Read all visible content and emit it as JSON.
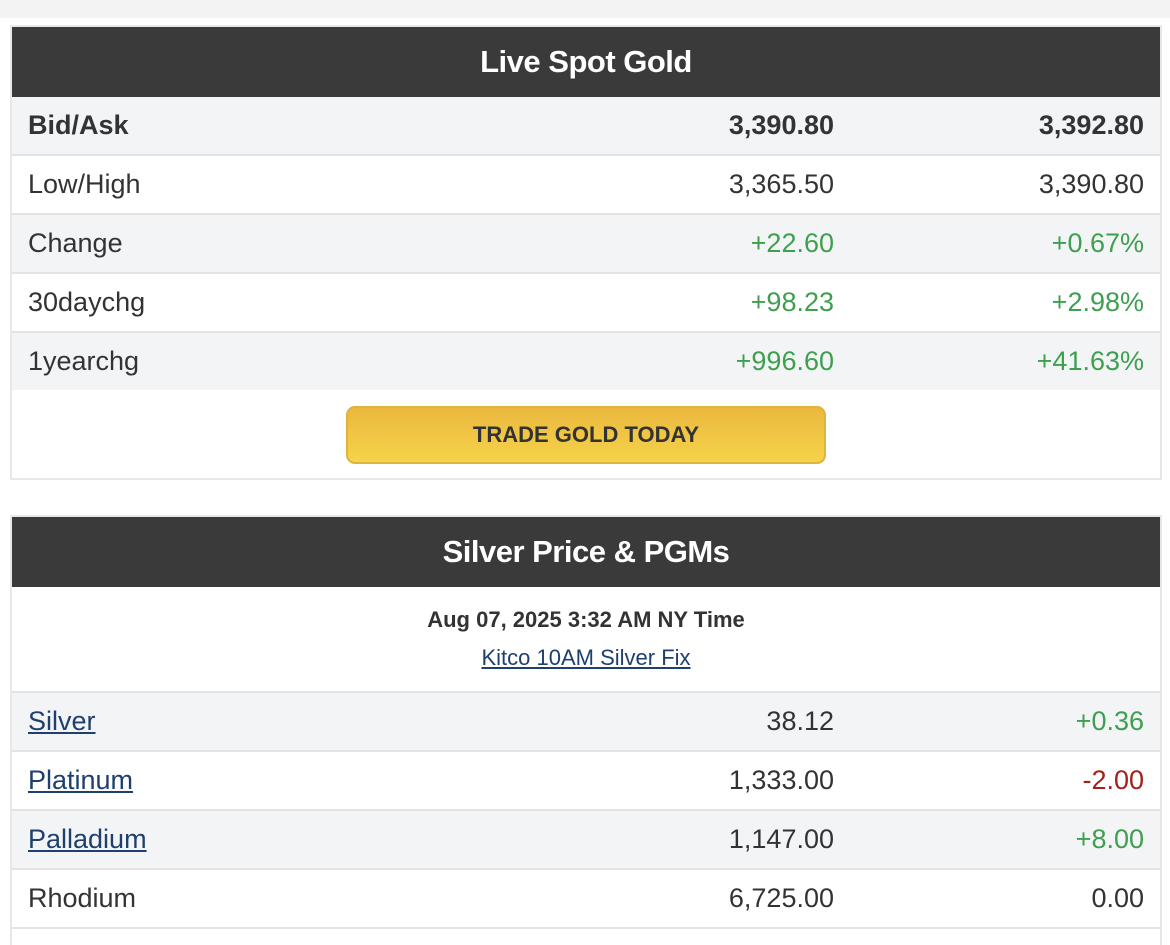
{
  "gold": {
    "title": "Live Spot Gold",
    "rows": [
      {
        "label": "Bid/Ask",
        "v1": "3,390.80",
        "v2": "3,392.80"
      },
      {
        "label": "Low/High",
        "v1": "3,365.50",
        "v2": "3,390.80"
      },
      {
        "label": "Change",
        "v1": "+22.60",
        "v2": "+0.67%"
      },
      {
        "label": "30daychg",
        "v1": "+98.23",
        "v2": "+2.98%"
      },
      {
        "label": "1yearchg",
        "v1": "+996.60",
        "v2": "+41.63%"
      }
    ],
    "trade_button": "TRADE GOLD TODAY"
  },
  "silver": {
    "title": "Silver Price & PGMs",
    "timestamp": "Aug 07, 2025 3:32 AM NY Time",
    "fix_link": "Kitco 10AM Silver Fix",
    "rows": [
      {
        "label": "Silver",
        "v1": "38.12",
        "v2": "+0.36"
      },
      {
        "label": "Platinum",
        "v1": "1,333.00",
        "v2": "-2.00"
      },
      {
        "label": "Palladium",
        "v1": "1,147.00",
        "v2": "+8.00"
      },
      {
        "label": "Rhodium",
        "v1": "6,725.00",
        "v2": "0.00"
      }
    ]
  },
  "colors": {
    "header_bg": "#3a3a3a",
    "positive": "#3e9f4f",
    "negative": "#a5201a",
    "link": "#1f3f6f",
    "button": "#f6d34a"
  }
}
